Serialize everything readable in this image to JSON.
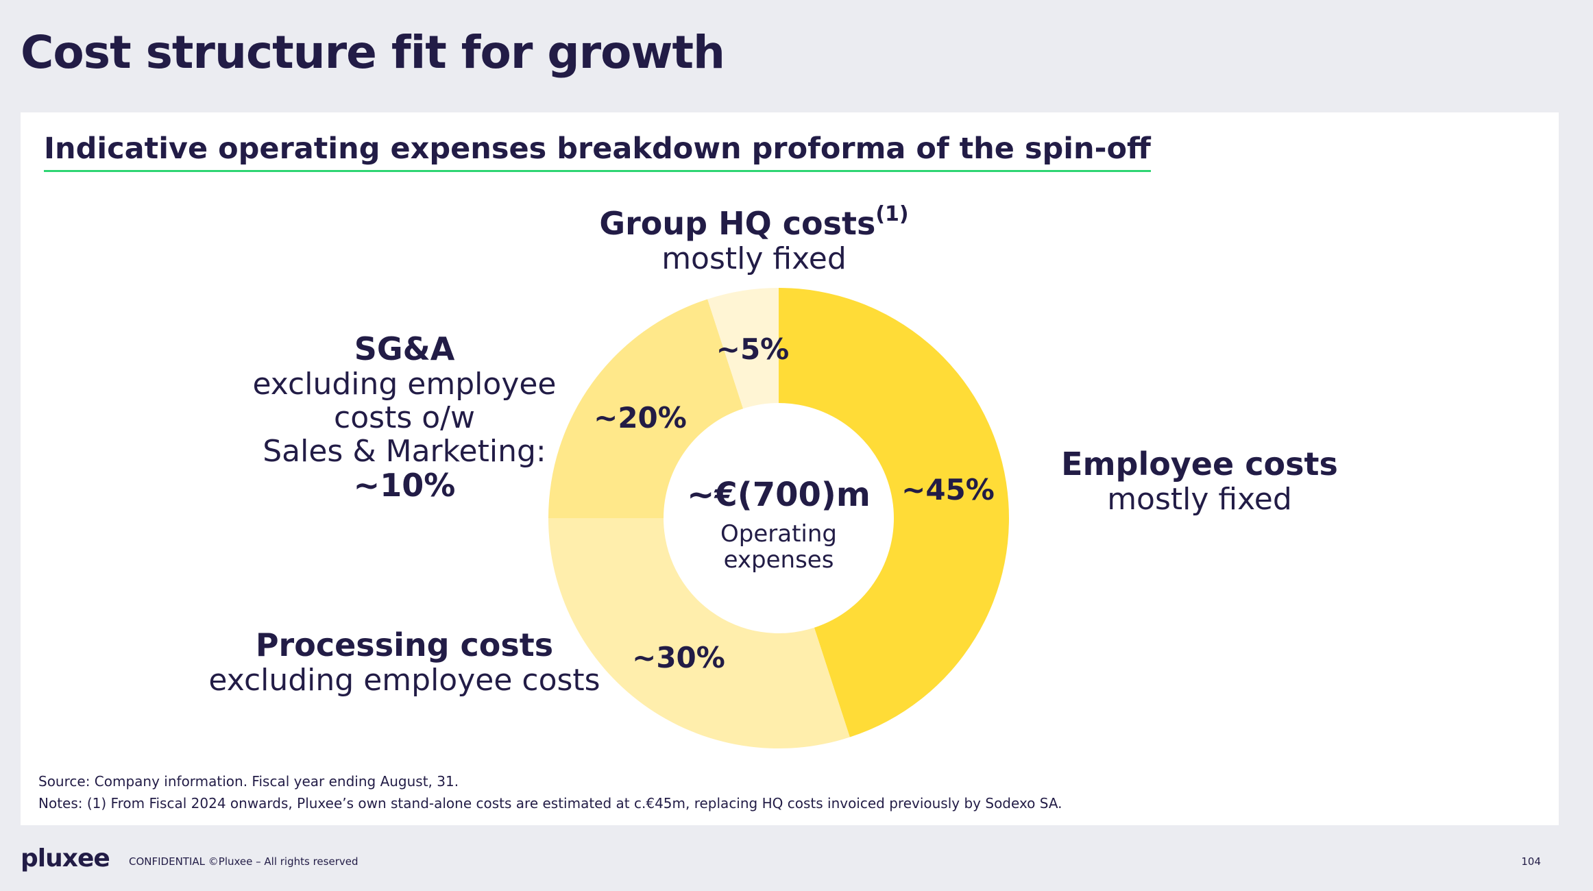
{
  "slide": {
    "title": "Cost structure fit for growth",
    "subtitle": "Indicative operating expenses breakdown proforma of the spin-off",
    "source": "Source: Company information. Fiscal year ending August, 31.",
    "notes": "Notes: (1) From Fiscal 2024 onwards, Pluxee’s own stand-alone costs are estimated at c.€45m, replacing HQ costs invoiced previously by Sodexo SA.",
    "logo": "pluxee",
    "footer": "CONFIDENTIAL ©Pluxee – All rights reserved",
    "page_number": "104"
  },
  "labels": {
    "hq": {
      "head": "Group HQ costs",
      "sup": "(1)",
      "sub": "mostly fixed"
    },
    "sga": {
      "head": "SG&A",
      "line1": "excluding employee",
      "line2": "costs o/w",
      "line3": "Sales & Marketing:",
      "value": "~10%"
    },
    "employee": {
      "head": "Employee costs",
      "sub": "mostly fixed"
    },
    "processing": {
      "head": "Processing costs",
      "sub": "excluding employee costs"
    }
  },
  "chart_data": {
    "type": "pie",
    "donut": true,
    "center_value": "~€(700)m",
    "center_label_line1": "Operating",
    "center_label_line2": "expenses",
    "slices": [
      {
        "name": "Employee costs",
        "value": 45,
        "label": "~45%",
        "color": "#ffdc37"
      },
      {
        "name": "Processing costs",
        "value": 30,
        "label": "~30%",
        "color": "#ffeeac"
      },
      {
        "name": "SG&A",
        "value": 20,
        "label": "~20%",
        "color": "#ffe88a"
      },
      {
        "name": "Group HQ costs",
        "value": 5,
        "label": "~5%",
        "color": "#fff5d4"
      }
    ]
  }
}
